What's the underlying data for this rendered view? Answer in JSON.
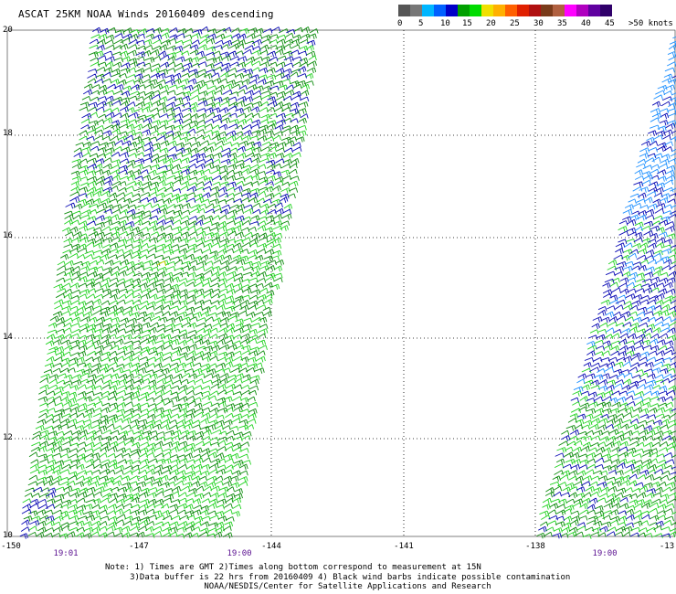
{
  "title": "ASCAT 25KM NOAA Winds 20160409 descending",
  "legend": {
    "colors": [
      "#555555",
      "#777777",
      "#00b6ff",
      "#0060ff",
      "#0000c8",
      "#00a000",
      "#00dc00",
      "#f0e000",
      "#ffb000",
      "#ff6000",
      "#e02000",
      "#b01010",
      "#7a3b1a",
      "#b06040",
      "#ff00ff",
      "#b000c0",
      "#6000a0",
      "#30006a"
    ],
    "labels": [
      "0",
      "5",
      "10",
      "15",
      "20",
      "25",
      "30",
      "35",
      "40",
      "45",
      ">50 knots"
    ]
  },
  "map": {
    "lat_labels": [
      "20",
      "18",
      "16",
      "14",
      "12",
      "10"
    ],
    "lon_labels": [
      "-150",
      "-147",
      "-144",
      "-141",
      "-138",
      "-13"
    ],
    "lat_range": [
      10,
      20
    ],
    "lon_range": [
      -150,
      -135
    ],
    "swaths": [
      {
        "name": "west swath",
        "time": "19:01",
        "time2": "19:00"
      },
      {
        "name": "east swath",
        "time": "19:00"
      }
    ],
    "barb_colors": {
      "light_green": "#22d322",
      "dark_green": "#0e8c0e",
      "blue": "#0a0ab4",
      "light_blue": "#1e90ff",
      "yellow": "#e0d000"
    }
  },
  "notes": {
    "line1": "Note: 1) Times are GMT 2)Times along bottom correspond to measurement at 15N",
    "line2": "     3)Data buffer is 22 hrs from 20160409 4) Black wind barbs indicate possible contamination",
    "line3": "                    NOAA/NESDIS/Center for Satellite Applications and Research"
  }
}
